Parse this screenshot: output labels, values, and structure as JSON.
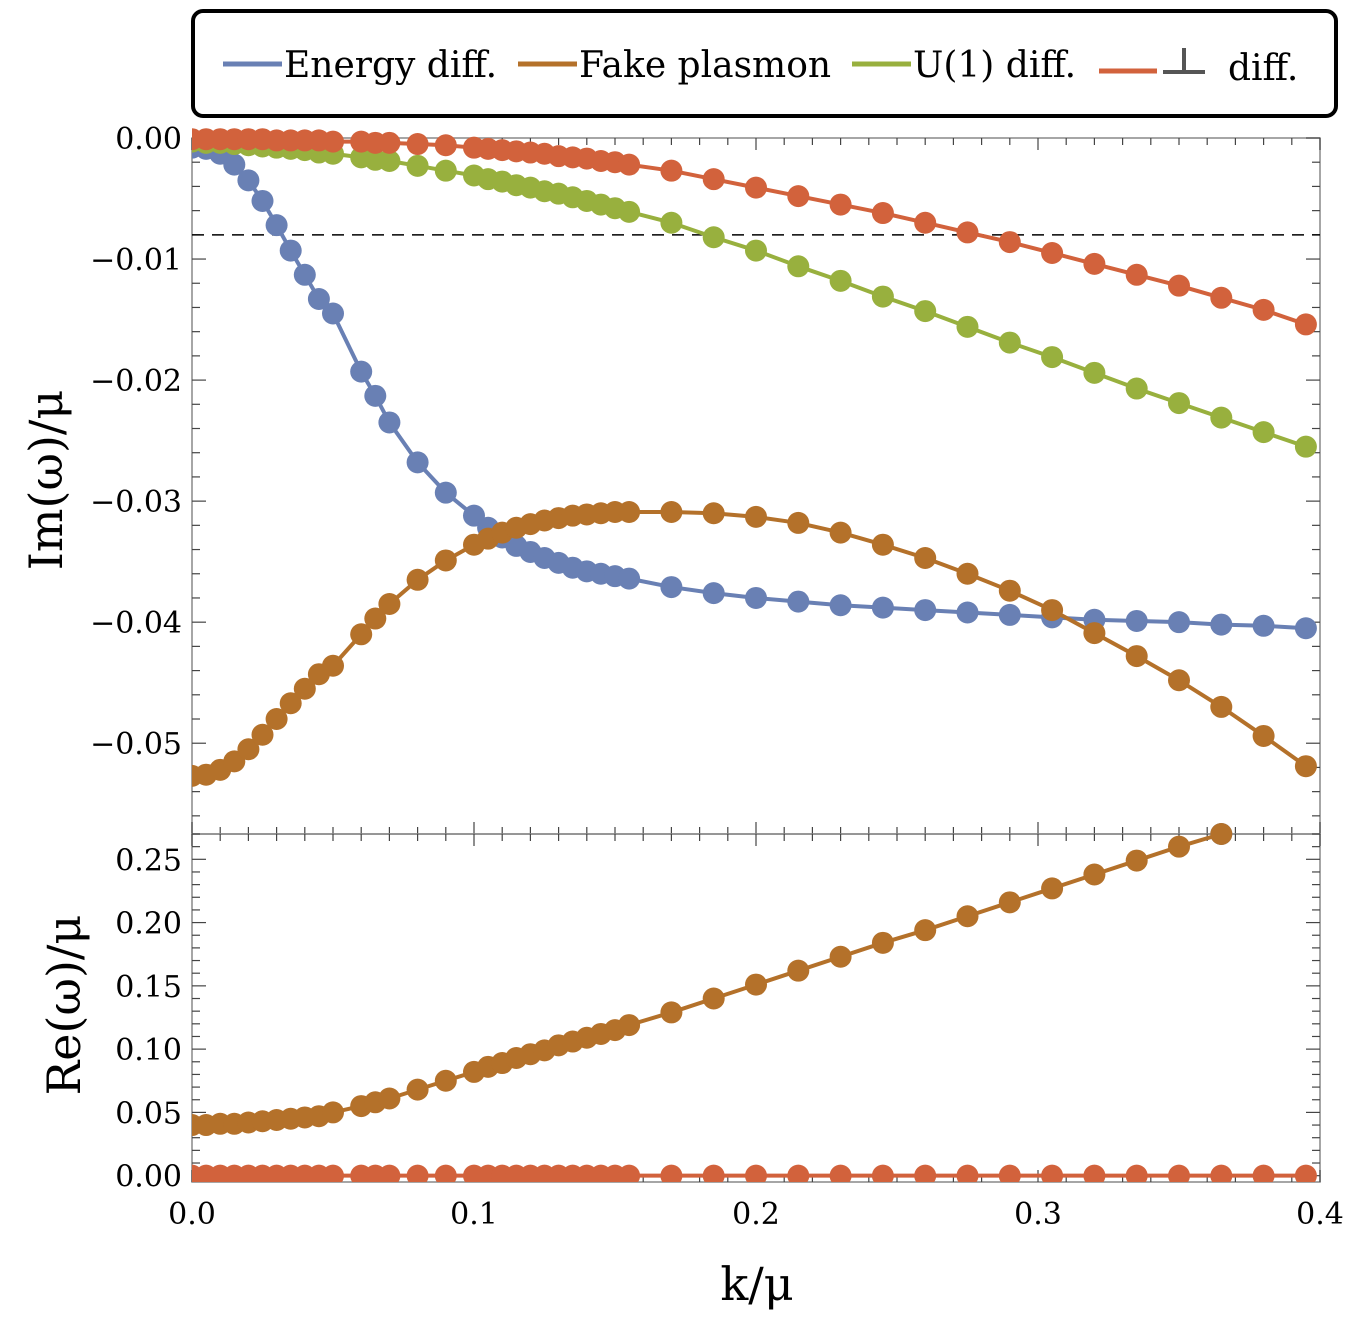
{
  "chart_data": [
    {
      "panel": "top",
      "type": "line",
      "xlabel": "",
      "ylabel": "Im(ω)/μ",
      "xlim": [
        0.0,
        0.4
      ],
      "ylim": [
        -0.0575,
        0.0
      ],
      "yticks": [
        0.0,
        -0.01,
        -0.02,
        -0.03,
        -0.04,
        -0.05
      ],
      "ytick_labels": [
        "0.00",
        "−0.01",
        "−0.02",
        "−0.03",
        "−0.04",
        "−0.05"
      ],
      "hline": {
        "y": -0.008,
        "style": "dashed",
        "color": "#000000"
      },
      "series": [
        {
          "name": "Energy diff.",
          "color": "#6980B4",
          "x": [
            0.0,
            0.005,
            0.01,
            0.015,
            0.02,
            0.025,
            0.03,
            0.035,
            0.04,
            0.045,
            0.05,
            0.06,
            0.065,
            0.07,
            0.08,
            0.09,
            0.1,
            0.105,
            0.11,
            0.115,
            0.12,
            0.125,
            0.13,
            0.135,
            0.14,
            0.145,
            0.15,
            0.155,
            0.17,
            0.185,
            0.2,
            0.215,
            0.23,
            0.245,
            0.26,
            0.275,
            0.29,
            0.305,
            0.32,
            0.335,
            0.35,
            0.365,
            0.38,
            0.395
          ],
          "y": [
            -0.0008,
            -0.0009,
            -0.0013,
            -0.0022,
            -0.0035,
            -0.0052,
            -0.0072,
            -0.0093,
            -0.0113,
            -0.0133,
            -0.0145,
            -0.0193,
            -0.0213,
            -0.0235,
            -0.0268,
            -0.0293,
            -0.0312,
            -0.0322,
            -0.033,
            -0.0337,
            -0.0342,
            -0.0347,
            -0.0351,
            -0.0355,
            -0.0358,
            -0.036,
            -0.0362,
            -0.0364,
            -0.0371,
            -0.0376,
            -0.038,
            -0.0383,
            -0.0386,
            -0.0388,
            -0.039,
            -0.0392,
            -0.0394,
            -0.0396,
            -0.0398,
            -0.0399,
            -0.04,
            -0.0402,
            -0.0403,
            -0.0405
          ]
        },
        {
          "name": "Fake plasmon",
          "color": "#B4712A",
          "x": [
            0.0,
            0.005,
            0.01,
            0.015,
            0.02,
            0.025,
            0.03,
            0.035,
            0.04,
            0.045,
            0.05,
            0.06,
            0.065,
            0.07,
            0.08,
            0.09,
            0.1,
            0.105,
            0.11,
            0.115,
            0.12,
            0.125,
            0.13,
            0.135,
            0.14,
            0.145,
            0.15,
            0.155,
            0.17,
            0.185,
            0.2,
            0.215,
            0.23,
            0.245,
            0.26,
            0.275,
            0.29,
            0.305,
            0.32,
            0.335,
            0.35,
            0.365,
            0.38,
            0.395
          ],
          "y": [
            -0.0527,
            -0.0526,
            -0.0522,
            -0.0515,
            -0.0505,
            -0.0493,
            -0.048,
            -0.0467,
            -0.0455,
            -0.0443,
            -0.0436,
            -0.041,
            -0.0397,
            -0.0385,
            -0.0365,
            -0.0349,
            -0.0336,
            -0.0331,
            -0.0326,
            -0.0322,
            -0.0319,
            -0.0316,
            -0.0314,
            -0.0312,
            -0.0311,
            -0.031,
            -0.0309,
            -0.0309,
            -0.0309,
            -0.031,
            -0.0313,
            -0.0318,
            -0.0326,
            -0.0336,
            -0.0347,
            -0.036,
            -0.0374,
            -0.039,
            -0.0409,
            -0.0428,
            -0.0448,
            -0.047,
            -0.0494,
            -0.0519
          ]
        },
        {
          "name": "U(1) diff.",
          "color": "#98B03E",
          "x": [
            0.0,
            0.005,
            0.01,
            0.015,
            0.02,
            0.025,
            0.03,
            0.035,
            0.04,
            0.045,
            0.05,
            0.06,
            0.065,
            0.07,
            0.08,
            0.09,
            0.1,
            0.105,
            0.11,
            0.115,
            0.12,
            0.125,
            0.13,
            0.135,
            0.14,
            0.145,
            0.15,
            0.155,
            0.17,
            0.185,
            0.2,
            0.215,
            0.23,
            0.245,
            0.26,
            0.275,
            0.29,
            0.305,
            0.32,
            0.335,
            0.35,
            0.365,
            0.38,
            0.395
          ],
          "y": [
            -0.0003,
            -0.0004,
            -0.0004,
            -0.0005,
            -0.0006,
            -0.0007,
            -0.0008,
            -0.0009,
            -0.001,
            -0.0012,
            -0.0013,
            -0.0016,
            -0.0018,
            -0.0019,
            -0.0023,
            -0.0027,
            -0.0031,
            -0.0034,
            -0.0036,
            -0.0039,
            -0.0041,
            -0.0044,
            -0.0046,
            -0.0049,
            -0.0052,
            -0.0055,
            -0.0058,
            -0.0061,
            -0.007,
            -0.0082,
            -0.0093,
            -0.0106,
            -0.0118,
            -0.0131,
            -0.0143,
            -0.0156,
            -0.0169,
            -0.0181,
            -0.0194,
            -0.0207,
            -0.0219,
            -0.0231,
            -0.0243,
            -0.0255
          ]
        },
        {
          "name": "⊥ diff.",
          "color": "#D2623C",
          "x": [
            0.0,
            0.005,
            0.01,
            0.015,
            0.02,
            0.025,
            0.03,
            0.035,
            0.04,
            0.045,
            0.05,
            0.06,
            0.065,
            0.07,
            0.08,
            0.09,
            0.1,
            0.105,
            0.11,
            0.115,
            0.12,
            0.125,
            0.13,
            0.135,
            0.14,
            0.145,
            0.15,
            0.155,
            0.17,
            0.185,
            0.2,
            0.215,
            0.23,
            0.245,
            0.26,
            0.275,
            0.29,
            0.305,
            0.32,
            0.335,
            0.35,
            0.365,
            0.38,
            0.395
          ],
          "y": [
            -0.0001,
            -0.0001,
            -0.0001,
            -0.0001,
            -0.0001,
            -0.0001,
            -0.0002,
            -0.0002,
            -0.0002,
            -0.0002,
            -0.0003,
            -0.0003,
            -0.0004,
            -0.0004,
            -0.0005,
            -0.0006,
            -0.0008,
            -0.0009,
            -0.001,
            -0.0011,
            -0.0012,
            -0.0013,
            -0.0015,
            -0.0016,
            -0.0017,
            -0.0019,
            -0.002,
            -0.0022,
            -0.0027,
            -0.0034,
            -0.0041,
            -0.0048,
            -0.0055,
            -0.0062,
            -0.007,
            -0.0078,
            -0.0086,
            -0.0095,
            -0.0104,
            -0.0113,
            -0.0122,
            -0.0132,
            -0.0142,
            -0.0154
          ]
        }
      ]
    },
    {
      "panel": "bottom",
      "type": "line",
      "xlabel": "k/μ",
      "ylabel": "Re(ω)/μ",
      "xlim": [
        0.0,
        0.4
      ],
      "ylim": [
        -0.005,
        0.27
      ],
      "xticks": [
        0.0,
        0.1,
        0.2,
        0.3,
        0.4
      ],
      "xtick_labels": [
        "0.0",
        "0.1",
        "0.2",
        "0.3",
        "0.4"
      ],
      "yticks": [
        0.0,
        0.05,
        0.1,
        0.15,
        0.2,
        0.25
      ],
      "ytick_labels": [
        "0.00",
        "0.05",
        "0.10",
        "0.15",
        "0.20",
        "0.25"
      ],
      "series": [
        {
          "name": "Energy diff.",
          "color": "#6980B4",
          "x": [
            0.365
          ],
          "y": [
            0.27
          ]
        },
        {
          "name": "Fake plasmon",
          "color": "#B4712A",
          "x": [
            0.0,
            0.005,
            0.01,
            0.015,
            0.02,
            0.025,
            0.03,
            0.035,
            0.04,
            0.045,
            0.05,
            0.06,
            0.065,
            0.07,
            0.08,
            0.09,
            0.1,
            0.105,
            0.11,
            0.115,
            0.12,
            0.125,
            0.13,
            0.135,
            0.14,
            0.145,
            0.15,
            0.155,
            0.17,
            0.185,
            0.2,
            0.215,
            0.23,
            0.245,
            0.26,
            0.275,
            0.29,
            0.305,
            0.32,
            0.335,
            0.35,
            0.365
          ],
          "y": [
            0.04,
            0.04,
            0.041,
            0.041,
            0.042,
            0.043,
            0.044,
            0.045,
            0.046,
            0.047,
            0.05,
            0.055,
            0.058,
            0.061,
            0.068,
            0.075,
            0.082,
            0.086,
            0.089,
            0.093,
            0.096,
            0.099,
            0.103,
            0.106,
            0.109,
            0.112,
            0.115,
            0.119,
            0.129,
            0.14,
            0.151,
            0.162,
            0.173,
            0.184,
            0.194,
            0.205,
            0.216,
            0.227,
            0.238,
            0.249,
            0.26,
            0.27
          ]
        },
        {
          "name": "⊥ diff.",
          "color": "#D2623C",
          "x": [
            0.0,
            0.005,
            0.01,
            0.015,
            0.02,
            0.025,
            0.03,
            0.035,
            0.04,
            0.045,
            0.05,
            0.06,
            0.065,
            0.07,
            0.08,
            0.09,
            0.1,
            0.105,
            0.11,
            0.115,
            0.12,
            0.125,
            0.13,
            0.135,
            0.14,
            0.145,
            0.15,
            0.155,
            0.17,
            0.185,
            0.2,
            0.215,
            0.23,
            0.245,
            0.26,
            0.275,
            0.29,
            0.305,
            0.32,
            0.335,
            0.35,
            0.365,
            0.38,
            0.395
          ],
          "y": [
            0.0,
            0.0,
            0.0,
            0.0,
            0.0,
            0.0,
            0.0,
            0.0,
            0.0,
            0.0,
            0.0,
            0.0,
            0.0,
            0.0,
            0.0,
            0.0,
            0.0,
            0.0,
            0.0,
            0.0,
            0.0,
            0.0,
            0.0,
            0.0,
            0.0,
            0.0,
            0.0,
            0.0,
            0.0,
            0.0,
            0.0,
            0.0,
            0.0,
            0.0,
            0.0,
            0.0,
            0.0,
            0.0,
            0.0,
            0.0,
            0.0,
            0.0,
            0.0,
            0.0
          ]
        }
      ]
    }
  ],
  "legend": {
    "placement": "top",
    "entries": [
      {
        "label": "Energy diff.",
        "color": "#6980B4"
      },
      {
        "label": "Fake plasmon",
        "color": "#B4712A"
      },
      {
        "label": "U(1) diff.",
        "color": "#98B03E"
      },
      {
        "label": "⊥ diff.",
        "color": "#D2623C",
        "symbol": "⊥",
        "symbol_color": "#555555",
        "text": "diff."
      }
    ]
  },
  "axis_labels": {
    "x": "k/μ",
    "y_top": "Im(ω)/μ",
    "y_bottom": "Re(ω)/μ"
  }
}
